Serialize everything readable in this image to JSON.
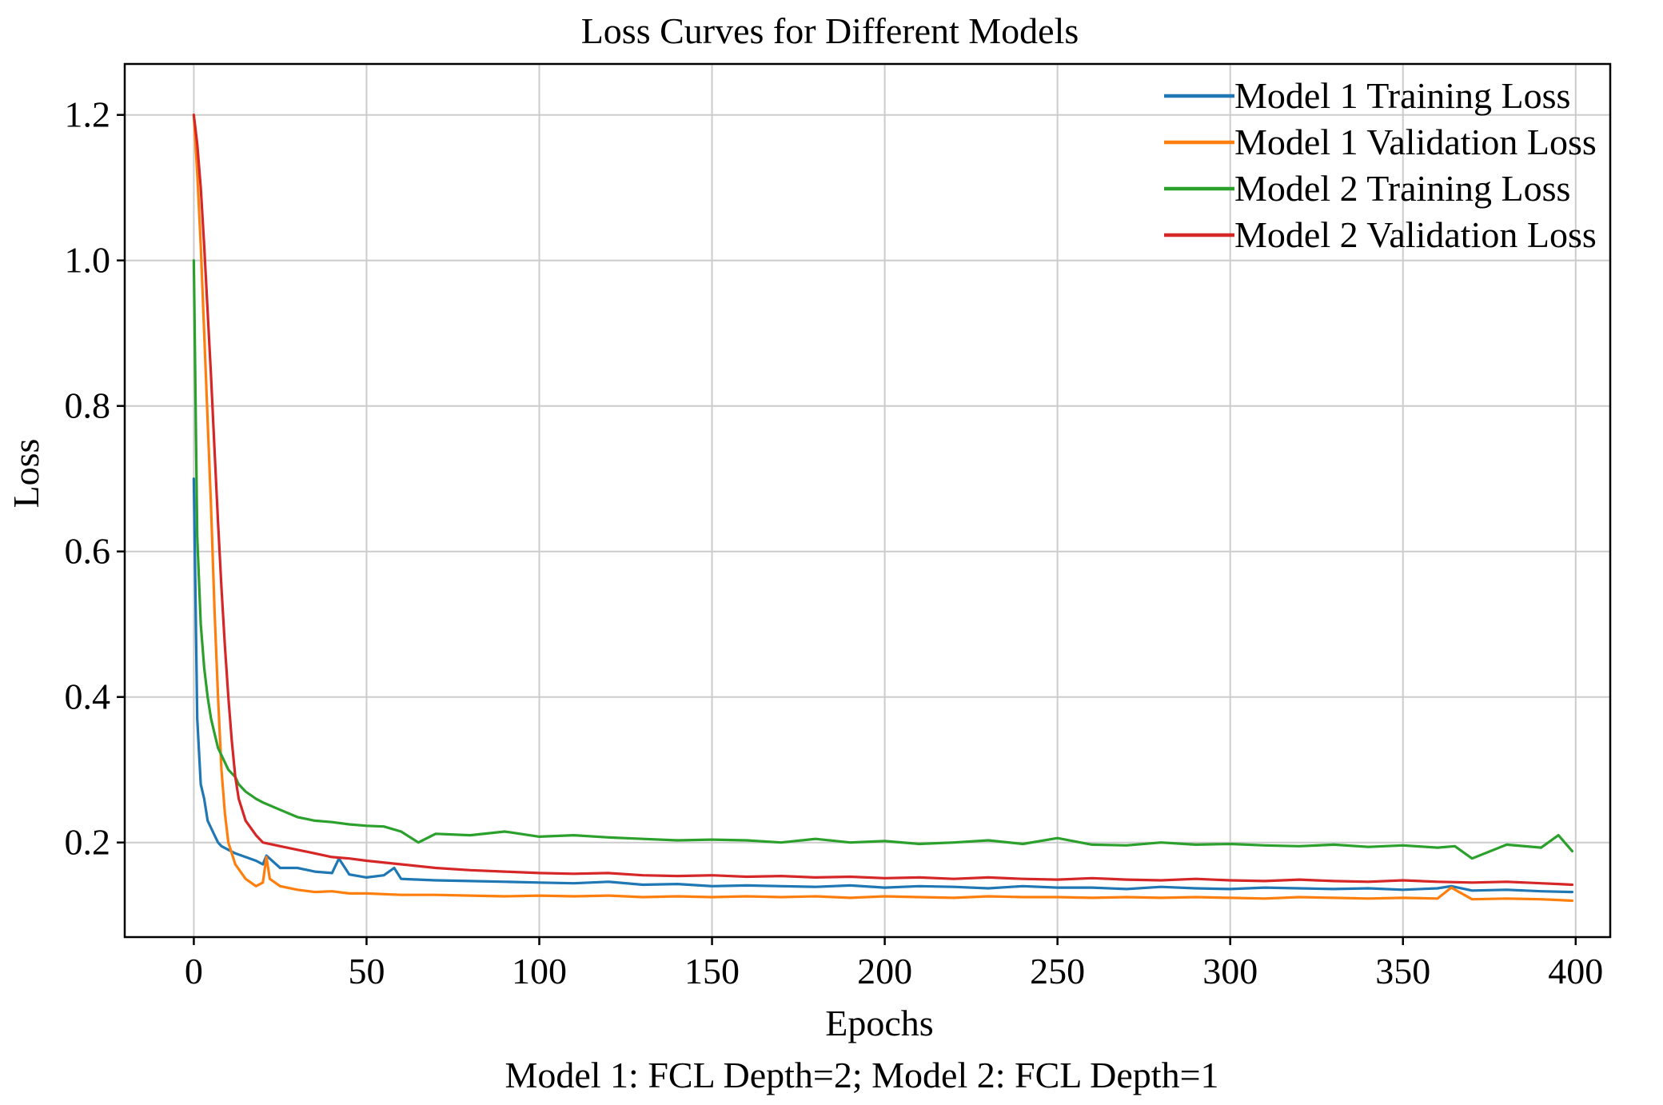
{
  "chart_data": {
    "type": "line",
    "title": "Loss Curves for Different Models",
    "xlabel": "Epochs",
    "ylabel": "Loss",
    "caption": "Model 1: FCL Depth=2; Model 2: FCL Depth=1",
    "xlim": [
      -20,
      410
    ],
    "ylim": [
      0.07,
      1.27
    ],
    "xticks": [
      0,
      50,
      100,
      150,
      200,
      250,
      300,
      350,
      400
    ],
    "yticks": [
      0.2,
      0.4,
      0.6,
      0.8,
      1.0,
      1.2
    ],
    "ytick_labels": [
      "0.2",
      "0.4",
      "0.6",
      "0.8",
      "1.0",
      "1.2"
    ],
    "grid": true,
    "legend_position": "top-right",
    "series": [
      {
        "name": "Model 1 Training Loss",
        "color": "#1f77b4",
        "x": [
          0,
          1,
          2,
          3,
          4,
          5,
          6,
          7,
          8,
          10,
          12,
          15,
          18,
          20,
          21,
          25,
          30,
          35,
          40,
          42,
          45,
          50,
          55,
          58,
          60,
          70,
          80,
          90,
          100,
          110,
          120,
          130,
          140,
          150,
          160,
          170,
          180,
          190,
          200,
          210,
          220,
          230,
          240,
          250,
          260,
          270,
          280,
          290,
          300,
          310,
          320,
          330,
          340,
          350,
          360,
          364,
          370,
          380,
          390,
          399
        ],
        "y": [
          0.7,
          0.37,
          0.28,
          0.26,
          0.23,
          0.22,
          0.21,
          0.2,
          0.195,
          0.19,
          0.185,
          0.18,
          0.175,
          0.17,
          0.182,
          0.165,
          0.165,
          0.16,
          0.158,
          0.178,
          0.156,
          0.152,
          0.155,
          0.165,
          0.15,
          0.148,
          0.147,
          0.146,
          0.145,
          0.144,
          0.146,
          0.142,
          0.143,
          0.14,
          0.141,
          0.14,
          0.139,
          0.141,
          0.138,
          0.14,
          0.139,
          0.137,
          0.14,
          0.138,
          0.138,
          0.136,
          0.139,
          0.137,
          0.136,
          0.138,
          0.137,
          0.136,
          0.137,
          0.135,
          0.137,
          0.14,
          0.134,
          0.135,
          0.133,
          0.132
        ]
      },
      {
        "name": "Model 1 Validation Loss",
        "color": "#ff7f0e",
        "x": [
          0,
          1,
          2,
          3,
          4,
          5,
          6,
          7,
          8,
          9,
          10,
          12,
          15,
          18,
          20,
          21,
          22,
          25,
          30,
          35,
          40,
          45,
          50,
          60,
          70,
          80,
          90,
          100,
          110,
          120,
          130,
          140,
          150,
          160,
          170,
          180,
          190,
          200,
          210,
          220,
          230,
          240,
          250,
          260,
          270,
          280,
          290,
          300,
          310,
          320,
          330,
          340,
          350,
          360,
          364,
          370,
          380,
          390,
          395,
          399
        ],
        "y": [
          1.2,
          1.12,
          1.02,
          0.9,
          0.78,
          0.66,
          0.52,
          0.4,
          0.3,
          0.24,
          0.2,
          0.17,
          0.15,
          0.14,
          0.145,
          0.18,
          0.15,
          0.14,
          0.135,
          0.132,
          0.133,
          0.13,
          0.13,
          0.128,
          0.128,
          0.127,
          0.126,
          0.127,
          0.126,
          0.127,
          0.125,
          0.126,
          0.125,
          0.126,
          0.125,
          0.126,
          0.124,
          0.126,
          0.125,
          0.124,
          0.126,
          0.125,
          0.125,
          0.124,
          0.125,
          0.124,
          0.125,
          0.124,
          0.123,
          0.125,
          0.124,
          0.123,
          0.124,
          0.123,
          0.138,
          0.122,
          0.123,
          0.122,
          0.121,
          0.12
        ]
      },
      {
        "name": "Model 2 Training Loss",
        "color": "#2ca02c",
        "x": [
          0,
          1,
          2,
          3,
          4,
          5,
          6,
          7,
          8,
          9,
          10,
          12,
          13,
          15,
          18,
          20,
          25,
          30,
          35,
          40,
          45,
          50,
          55,
          60,
          65,
          70,
          80,
          90,
          100,
          110,
          120,
          130,
          140,
          150,
          160,
          170,
          180,
          190,
          200,
          210,
          220,
          230,
          240,
          250,
          260,
          270,
          280,
          290,
          300,
          310,
          320,
          330,
          340,
          350,
          360,
          365,
          370,
          380,
          390,
          395,
          399
        ],
        "y": [
          1.0,
          0.62,
          0.5,
          0.44,
          0.4,
          0.37,
          0.35,
          0.33,
          0.32,
          0.31,
          0.3,
          0.29,
          0.28,
          0.27,
          0.26,
          0.255,
          0.245,
          0.235,
          0.23,
          0.228,
          0.225,
          0.223,
          0.222,
          0.215,
          0.2,
          0.212,
          0.21,
          0.215,
          0.208,
          0.21,
          0.207,
          0.205,
          0.203,
          0.204,
          0.203,
          0.2,
          0.205,
          0.2,
          0.202,
          0.198,
          0.2,
          0.203,
          0.198,
          0.206,
          0.197,
          0.196,
          0.2,
          0.197,
          0.198,
          0.196,
          0.195,
          0.197,
          0.194,
          0.196,
          0.193,
          0.195,
          0.178,
          0.197,
          0.193,
          0.21,
          0.188
        ]
      },
      {
        "name": "Model 2 Validation Loss",
        "color": "#d62728",
        "x": [
          0,
          1,
          2,
          3,
          4,
          5,
          6,
          7,
          8,
          9,
          10,
          11,
          12,
          13,
          15,
          18,
          20,
          25,
          30,
          35,
          40,
          45,
          50,
          60,
          70,
          80,
          90,
          100,
          110,
          120,
          130,
          140,
          150,
          160,
          170,
          180,
          190,
          200,
          210,
          220,
          230,
          240,
          250,
          260,
          270,
          280,
          290,
          300,
          310,
          320,
          330,
          340,
          350,
          360,
          370,
          380,
          390,
          395,
          399
        ],
        "y": [
          1.2,
          1.16,
          1.1,
          1.02,
          0.93,
          0.84,
          0.74,
          0.64,
          0.55,
          0.47,
          0.4,
          0.34,
          0.29,
          0.26,
          0.23,
          0.21,
          0.2,
          0.195,
          0.19,
          0.185,
          0.18,
          0.178,
          0.175,
          0.17,
          0.165,
          0.162,
          0.16,
          0.158,
          0.157,
          0.158,
          0.155,
          0.154,
          0.155,
          0.153,
          0.154,
          0.152,
          0.153,
          0.151,
          0.152,
          0.15,
          0.152,
          0.15,
          0.149,
          0.151,
          0.149,
          0.148,
          0.15,
          0.148,
          0.147,
          0.149,
          0.147,
          0.146,
          0.148,
          0.146,
          0.145,
          0.146,
          0.144,
          0.143,
          0.142
        ]
      }
    ]
  }
}
